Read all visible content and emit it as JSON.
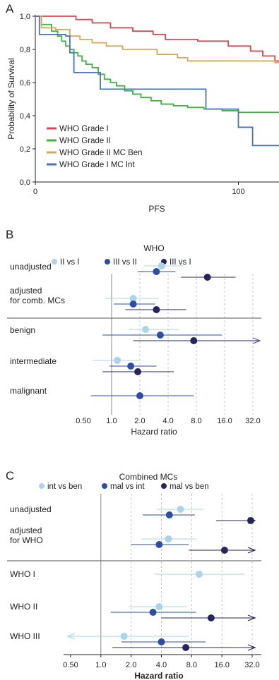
{
  "colors": {
    "grade1": "#e0464f",
    "grade2": "#3db53d",
    "mcben": "#d6a95b",
    "mcint": "#4a72c4",
    "light": "#a9d4ec",
    "mid": "#2b4ea8",
    "dark": "#23255e",
    "axis": "#222222",
    "grid": "#bbbbbb"
  },
  "chart_data": [
    {
      "id": "A",
      "type": "line",
      "panel_label": "A",
      "xlabel": "PFS",
      "ylabel": "Probability of Survival",
      "xlim": [
        0,
        120
      ],
      "ylim": [
        0,
        1
      ],
      "xticks": [
        0,
        100
      ],
      "yticks": [
        {
          "value": 0.0,
          "label": "0,0"
        },
        {
          "value": 0.2,
          "label": "0,2"
        },
        {
          "value": 0.4,
          "label": "0,4"
        },
        {
          "value": 0.6,
          "label": "0,6"
        },
        {
          "value": 0.8,
          "label": "0,8"
        },
        {
          "value": 1.0,
          "label": "1,0"
        }
      ],
      "legend_position": "bottom-left",
      "series": [
        {
          "name": "WHO Grade I",
          "color_key": "grade1",
          "steps": [
            [
              0,
              1.0
            ],
            [
              20,
              0.98
            ],
            [
              28,
              0.96
            ],
            [
              37,
              0.93
            ],
            [
              48,
              0.91
            ],
            [
              58,
              0.89
            ],
            [
              64,
              0.86
            ],
            [
              80,
              0.85
            ],
            [
              95,
              0.82
            ],
            [
              106,
              0.79
            ],
            [
              112,
              0.76
            ],
            [
              118,
              0.73
            ],
            [
              120,
              0.73
            ]
          ]
        },
        {
          "name": "WHO Grade II",
          "color_key": "grade2",
          "steps": [
            [
              0,
              1.0
            ],
            [
              3,
              0.95
            ],
            [
              8,
              0.91
            ],
            [
              11,
              0.88
            ],
            [
              13,
              0.85
            ],
            [
              15,
              0.82
            ],
            [
              17,
              0.8
            ],
            [
              19,
              0.78
            ],
            [
              21,
              0.76
            ],
            [
              23,
              0.73
            ],
            [
              25,
              0.71
            ],
            [
              28,
              0.69
            ],
            [
              31,
              0.65
            ],
            [
              34,
              0.62
            ],
            [
              37,
              0.6
            ],
            [
              40,
              0.58
            ],
            [
              44,
              0.55
            ],
            [
              48,
              0.53
            ],
            [
              52,
              0.51
            ],
            [
              57,
              0.49
            ],
            [
              62,
              0.47
            ],
            [
              68,
              0.46
            ],
            [
              75,
              0.45
            ],
            [
              83,
              0.44
            ],
            [
              92,
              0.43
            ],
            [
              100,
              0.42
            ],
            [
              110,
              0.42
            ],
            [
              120,
              0.42
            ]
          ]
        },
        {
          "name": "WHO Grade II MC Ben",
          "color_key": "mcben",
          "steps": [
            [
              0,
              1.0
            ],
            [
              3,
              0.93
            ],
            [
              10,
              0.92
            ],
            [
              17,
              0.88
            ],
            [
              22,
              0.86
            ],
            [
              28,
              0.84
            ],
            [
              35,
              0.82
            ],
            [
              43,
              0.8
            ],
            [
              60,
              0.77
            ],
            [
              70,
              0.75
            ],
            [
              75,
              0.73
            ],
            [
              110,
              0.73
            ],
            [
              118,
              0.72
            ],
            [
              120,
              0.72
            ]
          ]
        },
        {
          "name": "WHO Grade I MC Int",
          "color_key": "mcint",
          "steps": [
            [
              0,
              1.0
            ],
            [
              2,
              0.89
            ],
            [
              15,
              0.88
            ],
            [
              17,
              0.78
            ],
            [
              19,
              0.66
            ],
            [
              32,
              0.56
            ],
            [
              84,
              0.44
            ],
            [
              100,
              0.33
            ],
            [
              107,
              0.22
            ],
            [
              120,
              0.22
            ]
          ]
        }
      ]
    },
    {
      "id": "B",
      "type": "scatter",
      "subtype": "forest",
      "panel_label": "B",
      "group_title": "WHO",
      "xlabel": "Hazard ratio",
      "xscale": "log2",
      "xlim": [
        0.35,
        40
      ],
      "xticks": [
        {
          "value": 0.5,
          "label": "0.50"
        },
        {
          "value": 1,
          "label": "1.0"
        },
        {
          "value": 2,
          "label": "2.0"
        },
        {
          "value": 4,
          "label": "4.0"
        },
        {
          "value": 8,
          "label": "8.0"
        },
        {
          "value": 16,
          "label": "16.0"
        },
        {
          "value": 32,
          "label": "32.0"
        }
      ],
      "legend": [
        {
          "name": "II vs I",
          "color_key": "light"
        },
        {
          "name": "III vs II",
          "color_key": "mid"
        },
        {
          "name": "III vs I",
          "color_key": "dark"
        }
      ],
      "rows": [
        {
          "label_lines": [
            "unadjusted"
          ],
          "separator_after": false,
          "points": [
            {
              "series": "II vs I",
              "hr": 3.4,
              "lo": 2.2,
              "hi": 5.8
            },
            {
              "series": "III vs II",
              "hr": 3.0,
              "lo": 1.9,
              "hi": 4.8
            },
            {
              "series": "III vs I",
              "hr": 10.5,
              "lo": 5.5,
              "hi": 21.0
            }
          ]
        },
        {
          "label_lines": [
            "adjusted",
            "for comb. MCs"
          ],
          "separator_after": true,
          "points": [
            {
              "series": "II vs I",
              "hr": 1.7,
              "lo": 0.85,
              "hi": 3.2
            },
            {
              "series": "III vs II",
              "hr": 1.7,
              "lo": 1.05,
              "hi": 2.9
            },
            {
              "series": "III vs I",
              "hr": 3.0,
              "lo": 1.4,
              "hi": 6.2
            }
          ]
        },
        {
          "label_lines": [
            "benign"
          ],
          "separator_after": false,
          "points": [
            {
              "series": "II vs I",
              "hr": 2.3,
              "lo": 1.55,
              "hi": 5.2
            },
            {
              "series": "III vs II",
              "hr": 3.3,
              "lo": 0.8,
              "hi": 15.0
            },
            {
              "series": "III vs I",
              "hr": 7.5,
              "lo": 1.7,
              "hi": 40,
              "arrow_right": true
            }
          ]
        },
        {
          "label_lines": [
            "intermediate"
          ],
          "separator_after": false,
          "points": [
            {
              "series": "II vs I",
              "hr": 1.15,
              "lo": 0.62,
              "hi": 2.0
            },
            {
              "series": "III vs II",
              "hr": 1.6,
              "lo": 0.95,
              "hi": 3.0
            },
            {
              "series": "III vs I",
              "hr": 1.9,
              "lo": 0.8,
              "hi": 4.6
            }
          ]
        },
        {
          "label_lines": [
            "malignant"
          ],
          "separator_after": false,
          "points": [
            {
              "series": "III vs II",
              "hr": 2.0,
              "lo": 0.6,
              "hi": 7.5
            }
          ]
        }
      ]
    },
    {
      "id": "C",
      "type": "scatter",
      "subtype": "forest",
      "panel_label": "C",
      "group_title": "Combined MCs",
      "xlabel": "Hazard ratio",
      "xscale": "log2",
      "xlim": [
        0.35,
        40
      ],
      "xticks": [
        {
          "value": 0.5,
          "label": "0.50"
        },
        {
          "value": 1,
          "label": "1.0"
        },
        {
          "value": 2,
          "label": "2.0"
        },
        {
          "value": 4,
          "label": "4.0"
        },
        {
          "value": 8,
          "label": "8.0"
        },
        {
          "value": 16,
          "label": "16.0"
        },
        {
          "value": 32,
          "label": "32.0"
        }
      ],
      "legend": [
        {
          "name": "int vs ben",
          "color_key": "light"
        },
        {
          "name": "mal vs int",
          "color_key": "mid"
        },
        {
          "name": "mal vs ben",
          "color_key": "dark"
        }
      ],
      "rows": [
        {
          "label_lines": [
            "unadjusted"
          ],
          "separator_after": false,
          "points": [
            {
              "series": "int vs ben",
              "hr": 6.2,
              "lo": 3.6,
              "hi": 10.5
            },
            {
              "series": "mal vs int",
              "hr": 4.8,
              "lo": 2.6,
              "hi": 8.6
            },
            {
              "series": "mal vs ben",
              "hr": 31.0,
              "lo": 14.0,
              "hi": 40,
              "arrow_right": true
            }
          ]
        },
        {
          "label_lines": [
            "adjusted",
            "for WHO"
          ],
          "separator_after": true,
          "points": [
            {
              "series": "int vs ben",
              "hr": 4.7,
              "lo": 2.5,
              "hi": 9.0
            },
            {
              "series": "mal vs int",
              "hr": 3.8,
              "lo": 2.0,
              "hi": 7.5
            },
            {
              "series": "mal vs ben",
              "hr": 17.0,
              "lo": 7.5,
              "hi": 40,
              "arrow_right": true
            }
          ]
        },
        {
          "label_lines": [
            "WHO I"
          ],
          "separator_after": false,
          "points": [
            {
              "series": "int vs ben",
              "hr": 9.5,
              "lo": 3.4,
              "hi": 27.0
            }
          ]
        },
        {
          "label_lines": [
            "WHO II"
          ],
          "separator_after": false,
          "points": [
            {
              "series": "int vs ben",
              "hr": 3.8,
              "lo": 1.9,
              "hi": 7.2
            },
            {
              "series": "mal vs int",
              "hr": 3.3,
              "lo": 1.25,
              "hi": 8.8
            },
            {
              "series": "mal vs ben",
              "hr": 12.5,
              "lo": 4.0,
              "hi": 40,
              "arrow_right": true
            }
          ]
        },
        {
          "label_lines": [
            "WHO III"
          ],
          "separator_after": false,
          "points": [
            {
              "series": "int vs ben",
              "hr": 1.7,
              "lo": 0.35,
              "hi": 7.5,
              "arrow_left": true
            },
            {
              "series": "mal vs int",
              "hr": 4.0,
              "lo": 1.6,
              "hi": 11.0
            },
            {
              "series": "mal vs ben",
              "hr": 7.0,
              "lo": 1.3,
              "hi": 40,
              "arrow_right": true
            }
          ]
        }
      ]
    }
  ]
}
